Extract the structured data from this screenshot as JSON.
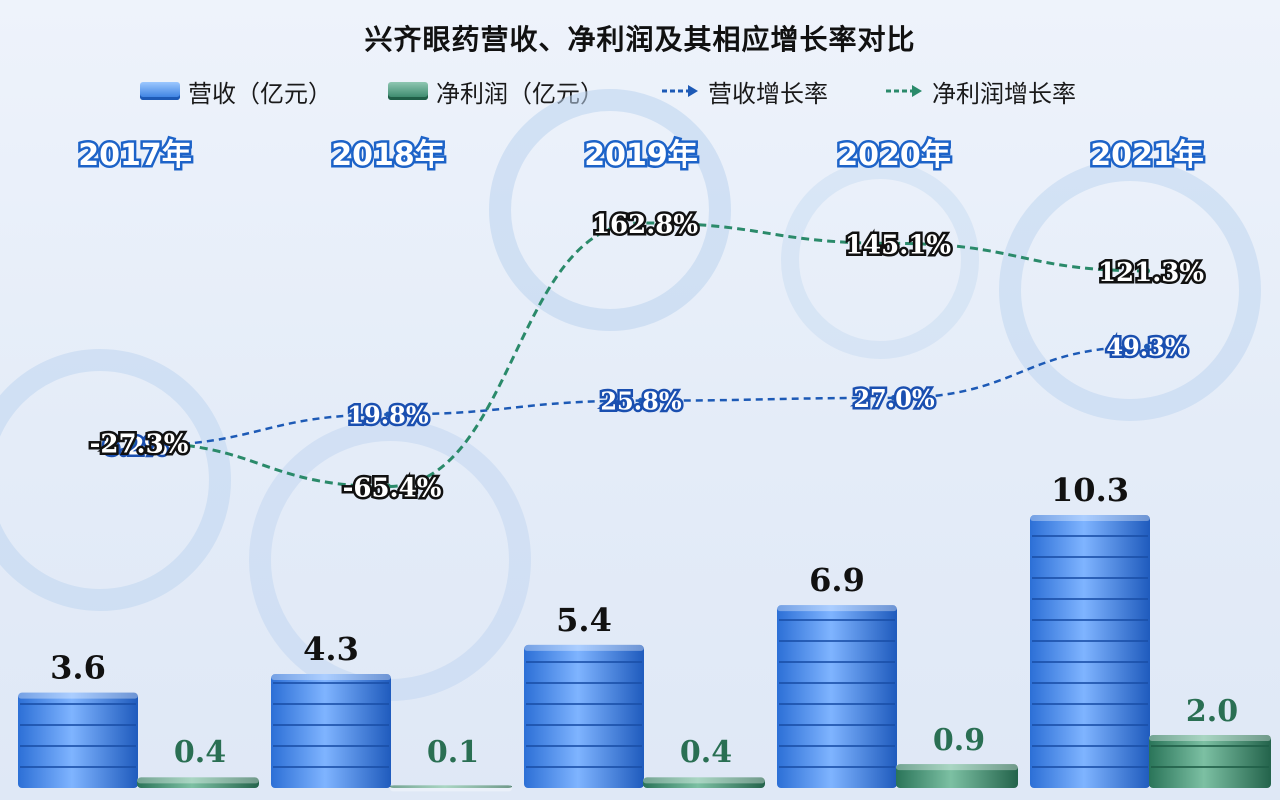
{
  "chart_data": {
    "type": "bar",
    "title": "兴齐眼药营收、净利润及其相应增长率对比",
    "categories": [
      "2017年",
      "2018年",
      "2019年",
      "2020年",
      "2021年"
    ],
    "series": [
      {
        "name": "营收（亿元）",
        "kind": "bar",
        "color": "#2f78dd",
        "values": [
          3.6,
          4.3,
          5.4,
          6.9,
          10.3
        ]
      },
      {
        "name": "净利润（亿元）",
        "kind": "bar",
        "color": "#2f8063",
        "values": [
          0.4,
          0.1,
          0.4,
          0.9,
          2.0
        ]
      },
      {
        "name": "营收增长率",
        "kind": "line",
        "color": "#1d5ab6",
        "unit": "%",
        "values": [
          6.2,
          19.8,
          25.8,
          27.0,
          49.3
        ]
      },
      {
        "name": "净利润增长率",
        "kind": "line",
        "color": "#2a8a6a",
        "unit": "%",
        "values": [
          -27.3,
          -65.4,
          162.8,
          145.1,
          121.3
        ]
      }
    ],
    "legend_position": "top",
    "grid": false
  }
}
